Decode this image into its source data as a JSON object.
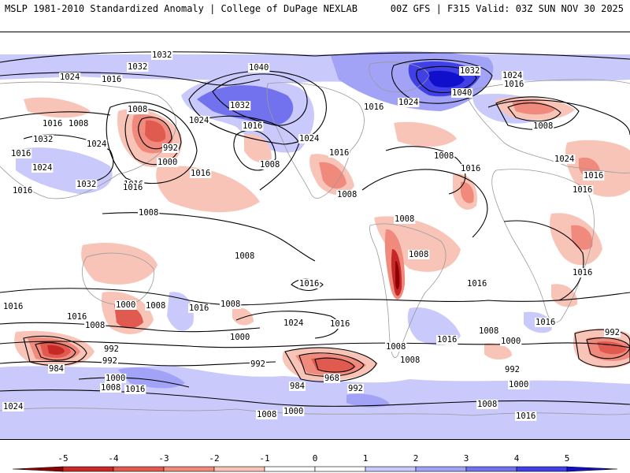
{
  "header": {
    "left": "MSLP 1981-2010 Standardized Anomaly | College of DuPage NEXLAB",
    "right": "00Z GFS | F315 Valid: 03Z SUN NOV 30 2025"
  },
  "colors": {
    "neg5": "#8b0000",
    "neg4": "#c62828",
    "neg3": "#e05a50",
    "neg2": "#f08a7c",
    "neg1": "#f9c4b8",
    "zero": "#ffffff",
    "pos1": "#c9c9fb",
    "pos2": "#a2a2f6",
    "pos3": "#7272ef",
    "pos4": "#4040e6",
    "pos5": "#1010cc",
    "land": "#9a9a9a",
    "contour": "#000000"
  },
  "colorbar": {
    "ticks": [
      "-5",
      "-4",
      "-3",
      "-2",
      "-1",
      "0",
      "1",
      "2",
      "3",
      "4",
      "5"
    ]
  },
  "isobar_labels": [
    {
      "id": "l1032a",
      "text": "1032"
    },
    {
      "id": "l1032b",
      "text": "1032"
    },
    {
      "id": "l1040a",
      "text": "1040"
    },
    {
      "id": "l1024a",
      "text": "1024"
    },
    {
      "id": "l1016a",
      "text": "1016"
    },
    {
      "id": "l1032c",
      "text": "1032"
    },
    {
      "id": "l1040b",
      "text": "1040"
    },
    {
      "id": "l1024b",
      "text": "1024"
    },
    {
      "id": "l1016b",
      "text": "1016"
    },
    {
      "id": "l1008a",
      "text": "1008"
    },
    {
      "id": "l1032d",
      "text": "1032"
    },
    {
      "id": "l1016c",
      "text": "1016"
    },
    {
      "id": "l1024c",
      "text": "1024"
    },
    {
      "id": "l1016d",
      "text": "1016"
    },
    {
      "id": "l1008b",
      "text": "1008"
    },
    {
      "id": "l1016e",
      "text": "1016"
    },
    {
      "id": "l1032e",
      "text": "1032"
    },
    {
      "id": "l1024d",
      "text": "1024"
    },
    {
      "id": "l1016f",
      "text": "1016"
    },
    {
      "id": "l992a",
      "text": "992"
    },
    {
      "id": "l1000a",
      "text": "1000"
    },
    {
      "id": "l1008c",
      "text": "1008"
    },
    {
      "id": "l1024e",
      "text": "1024"
    },
    {
      "id": "l1016g",
      "text": "1016"
    },
    {
      "id": "l1008d",
      "text": "1008"
    },
    {
      "id": "l1016h",
      "text": "1016"
    },
    {
      "id": "l1024f",
      "text": "1024"
    },
    {
      "id": "l1016i",
      "text": "1016"
    },
    {
      "id": "l1032f",
      "text": "1032"
    },
    {
      "id": "l1016j",
      "text": "1016"
    },
    {
      "id": "l1024g",
      "text": "1024"
    },
    {
      "id": "l1016k",
      "text": "1016"
    },
    {
      "id": "l1008e",
      "text": "1008"
    },
    {
      "id": "l1016l",
      "text": "1016"
    },
    {
      "id": "l1008f",
      "text": "1008"
    },
    {
      "id": "l1008g",
      "text": "1008"
    },
    {
      "id": "l1024h",
      "text": "1024"
    },
    {
      "id": "l1016m",
      "text": "1016"
    },
    {
      "id": "l1008h",
      "text": "1008"
    },
    {
      "id": "l1016n",
      "text": "1016"
    },
    {
      "id": "l1008i",
      "text": "1008"
    },
    {
      "id": "l1016o",
      "text": "1016"
    },
    {
      "id": "l1016p",
      "text": "1016"
    },
    {
      "id": "l1008j",
      "text": "1008"
    },
    {
      "id": "l1016q",
      "text": "1016"
    },
    {
      "id": "l1016r",
      "text": "1016"
    },
    {
      "id": "l1016s",
      "text": "1016"
    },
    {
      "id": "l1000b",
      "text": "1000"
    },
    {
      "id": "l1008k",
      "text": "1008"
    },
    {
      "id": "l1016t",
      "text": "1016"
    },
    {
      "id": "l1008l",
      "text": "1008"
    },
    {
      "id": "l1016u",
      "text": "1016"
    },
    {
      "id": "l1008m",
      "text": "1008"
    },
    {
      "id": "l1024i",
      "text": "1024"
    },
    {
      "id": "l1016v",
      "text": "1016"
    },
    {
      "id": "l1008n",
      "text": "1008"
    },
    {
      "id": "l1016w",
      "text": "1016"
    },
    {
      "id": "l1000c",
      "text": "1000"
    },
    {
      "id": "l992b",
      "text": "992"
    },
    {
      "id": "l992c",
      "text": "992"
    },
    {
      "id": "l984a",
      "text": "984"
    },
    {
      "id": "l1000d",
      "text": "1000"
    },
    {
      "id": "l1008o",
      "text": "1008"
    },
    {
      "id": "l1016x",
      "text": "1016"
    },
    {
      "id": "l992d",
      "text": "992"
    },
    {
      "id": "l968a",
      "text": "968"
    },
    {
      "id": "l984b",
      "text": "984"
    },
    {
      "id": "l992e",
      "text": "992"
    },
    {
      "id": "l1008p",
      "text": "1008"
    },
    {
      "id": "l1000e",
      "text": "1000"
    },
    {
      "id": "l1008q",
      "text": "1008"
    },
    {
      "id": "l1000f",
      "text": "1000"
    },
    {
      "id": "l992f",
      "text": "992"
    },
    {
      "id": "l1000g",
      "text": "1000"
    },
    {
      "id": "l1008r",
      "text": "1008"
    },
    {
      "id": "l1016y",
      "text": "1016"
    },
    {
      "id": "l992g",
      "text": "992"
    },
    {
      "id": "l1024j",
      "text": "1024"
    },
    {
      "id": "l1008s",
      "text": "1008"
    },
    {
      "id": "l1000h",
      "text": "1000"
    }
  ]
}
